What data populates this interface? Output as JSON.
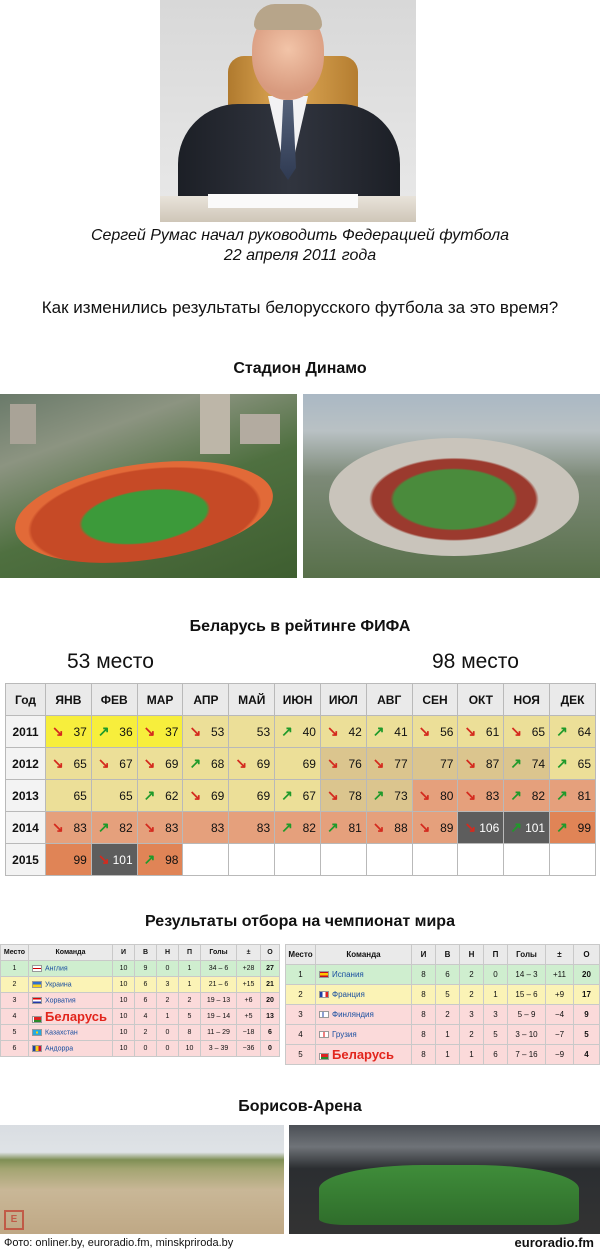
{
  "caption": {
    "line1": "Сергей Румас начал руководить Федерацией футбола",
    "line2": "22 апреля 2011 года"
  },
  "question": "Как изменились результаты белорусского футбола за это время?",
  "stadium_title": "Стадион Динамо",
  "fifa": {
    "title": "Беларусь в рейтинге ФИФА",
    "place_left": "53 место",
    "place_right": "98 место",
    "headers": [
      "Год",
      "ЯНВ",
      "ФЕВ",
      "МАР",
      "АПР",
      "МАЙ",
      "ИЮН",
      "ИЮЛ",
      "АВГ",
      "СЕН",
      "ОКТ",
      "НОЯ",
      "ДЕК"
    ],
    "rows": [
      {
        "year": "2011",
        "cells": [
          {
            "v": "37",
            "a": "down",
            "c": "yellow"
          },
          {
            "v": "36",
            "a": "up",
            "c": "yellow"
          },
          {
            "v": "37",
            "a": "down",
            "c": "yellow"
          },
          {
            "v": "53",
            "a": "down",
            "c": "lightyellow"
          },
          {
            "v": "53",
            "a": "",
            "c": "lightyellow"
          },
          {
            "v": "40",
            "a": "up",
            "c": "lightyellow"
          },
          {
            "v": "42",
            "a": "down",
            "c": "lightyellow"
          },
          {
            "v": "41",
            "a": "up",
            "c": "lightyellow"
          },
          {
            "v": "56",
            "a": "down",
            "c": "lightyellow"
          },
          {
            "v": "61",
            "a": "down",
            "c": "lightyellow"
          },
          {
            "v": "65",
            "a": "down",
            "c": "lightyellow"
          },
          {
            "v": "64",
            "a": "up",
            "c": "lightyellow"
          }
        ]
      },
      {
        "year": "2012",
        "cells": [
          {
            "v": "65",
            "a": "down",
            "c": "lightyellow"
          },
          {
            "v": "67",
            "a": "down",
            "c": "lightyellow"
          },
          {
            "v": "69",
            "a": "down",
            "c": "lightyellow"
          },
          {
            "v": "68",
            "a": "up",
            "c": "lightyellow"
          },
          {
            "v": "69",
            "a": "down",
            "c": "lightyellow"
          },
          {
            "v": "69",
            "a": "",
            "c": "lightyellow"
          },
          {
            "v": "76",
            "a": "down",
            "c": "beige"
          },
          {
            "v": "77",
            "a": "down",
            "c": "beige"
          },
          {
            "v": "77",
            "a": "",
            "c": "beige"
          },
          {
            "v": "87",
            "a": "down",
            "c": "beige"
          },
          {
            "v": "74",
            "a": "up",
            "c": "beige"
          },
          {
            "v": "65",
            "a": "up",
            "c": "lightyellow"
          }
        ]
      },
      {
        "year": "2013",
        "cells": [
          {
            "v": "65",
            "a": "",
            "c": "lightyellow"
          },
          {
            "v": "65",
            "a": "",
            "c": "lightyellow"
          },
          {
            "v": "62",
            "a": "up",
            "c": "lightyellow"
          },
          {
            "v": "69",
            "a": "down",
            "c": "lightyellow"
          },
          {
            "v": "69",
            "a": "",
            "c": "lightyellow"
          },
          {
            "v": "67",
            "a": "up",
            "c": "lightyellow"
          },
          {
            "v": "78",
            "a": "down",
            "c": "beige"
          },
          {
            "v": "73",
            "a": "up",
            "c": "beige"
          },
          {
            "v": "80",
            "a": "down",
            "c": "salmon"
          },
          {
            "v": "83",
            "a": "down",
            "c": "salmon"
          },
          {
            "v": "82",
            "a": "up",
            "c": "salmon"
          },
          {
            "v": "81",
            "a": "up",
            "c": "salmon"
          }
        ]
      },
      {
        "year": "2014",
        "cells": [
          {
            "v": "83",
            "a": "down",
            "c": "salmon"
          },
          {
            "v": "82",
            "a": "up",
            "c": "salmon"
          },
          {
            "v": "83",
            "a": "down",
            "c": "salmon"
          },
          {
            "v": "83",
            "a": "",
            "c": "salmon"
          },
          {
            "v": "83",
            "a": "",
            "c": "salmon"
          },
          {
            "v": "82",
            "a": "up",
            "c": "salmon"
          },
          {
            "v": "81",
            "a": "up",
            "c": "salmon"
          },
          {
            "v": "88",
            "a": "down",
            "c": "salmon"
          },
          {
            "v": "89",
            "a": "down",
            "c": "salmon"
          },
          {
            "v": "106",
            "a": "down",
            "c": "gray"
          },
          {
            "v": "101",
            "a": "up",
            "c": "gray"
          },
          {
            "v": "99",
            "a": "up",
            "c": "orange"
          }
        ]
      },
      {
        "year": "2015",
        "cells": [
          {
            "v": "99",
            "a": "",
            "c": "orange"
          },
          {
            "v": "101",
            "a": "down",
            "c": "gray"
          },
          {
            "v": "98",
            "a": "up",
            "c": "orange"
          },
          {
            "v": "",
            "a": "",
            "c": "empty"
          },
          {
            "v": "",
            "a": "",
            "c": "empty"
          },
          {
            "v": "",
            "a": "",
            "c": "empty"
          },
          {
            "v": "",
            "a": "",
            "c": "empty"
          },
          {
            "v": "",
            "a": "",
            "c": "empty"
          },
          {
            "v": "",
            "a": "",
            "c": "empty"
          },
          {
            "v": "",
            "a": "",
            "c": "empty"
          },
          {
            "v": "",
            "a": "",
            "c": "empty"
          },
          {
            "v": "",
            "a": "",
            "c": "empty"
          }
        ]
      }
    ]
  },
  "qualification": {
    "title": "Результаты отбора на чемпионат мира",
    "headers": [
      "Место",
      "Команда",
      "И",
      "В",
      "Н",
      "П",
      "Голы",
      "±",
      "О"
    ],
    "group1": [
      {
        "pos": "1",
        "team": "Англия",
        "flag": "england",
        "row": "green",
        "p": "10",
        "w": "9",
        "d": "0",
        "l": "1",
        "goals": "34 – 6",
        "diff": "+28",
        "pts": "27"
      },
      {
        "pos": "2",
        "team": "Украина",
        "flag": "ukraine",
        "row": "yellow",
        "p": "10",
        "w": "6",
        "d": "3",
        "l": "1",
        "goals": "21 – 6",
        "diff": "+15",
        "pts": "21"
      },
      {
        "pos": "3",
        "team": "Хорватия",
        "flag": "croatia",
        "row": "pink",
        "p": "10",
        "w": "6",
        "d": "2",
        "l": "2",
        "goals": "19 – 13",
        "diff": "+6",
        "pts": "20"
      },
      {
        "pos": "4",
        "team": "Беларусь",
        "flag": "belarus",
        "row": "pink",
        "p": "10",
        "w": "4",
        "d": "1",
        "l": "5",
        "goals": "19 – 14",
        "diff": "+5",
        "pts": "13"
      },
      {
        "pos": "5",
        "team": "Казахстан",
        "flag": "kazakhstan",
        "row": "pink",
        "p": "10",
        "w": "2",
        "d": "0",
        "l": "8",
        "goals": "11 – 29",
        "diff": "−18",
        "pts": "6"
      },
      {
        "pos": "6",
        "team": "Андорра",
        "flag": "andorra",
        "row": "pink",
        "p": "10",
        "w": "0",
        "d": "0",
        "l": "10",
        "goals": "3 – 39",
        "diff": "−36",
        "pts": "0"
      }
    ],
    "group2": [
      {
        "pos": "1",
        "team": "Испания",
        "flag": "spain",
        "row": "green",
        "p": "8",
        "w": "6",
        "d": "2",
        "l": "0",
        "goals": "14 – 3",
        "diff": "+11",
        "pts": "20"
      },
      {
        "pos": "2",
        "team": "Франция",
        "flag": "france",
        "row": "yellow",
        "p": "8",
        "w": "5",
        "d": "2",
        "l": "1",
        "goals": "15 – 6",
        "diff": "+9",
        "pts": "17"
      },
      {
        "pos": "3",
        "team": "Финляндия",
        "flag": "finland",
        "row": "pink",
        "p": "8",
        "w": "2",
        "d": "3",
        "l": "3",
        "goals": "5 – 9",
        "diff": "−4",
        "pts": "9"
      },
      {
        "pos": "4",
        "team": "Грузия",
        "flag": "georgia",
        "row": "pink",
        "p": "8",
        "w": "1",
        "d": "2",
        "l": "5",
        "goals": "3 – 10",
        "diff": "−7",
        "pts": "5"
      },
      {
        "pos": "5",
        "team": "Беларусь",
        "flag": "belarus",
        "row": "pink",
        "p": "8",
        "w": "1",
        "d": "1",
        "l": "6",
        "goals": "7 – 16",
        "diff": "−9",
        "pts": "4"
      }
    ]
  },
  "arena_title": "Борисов-Арена",
  "credit": "Фото: onliner.by, euroradio.fm, minskpriroda.by",
  "brand": "euroradio.fm",
  "colors": {
    "yellow": "#f7ee3c",
    "lightyellow": "#ecdf98",
    "beige": "#dbc58e",
    "salmon": "#e5a07c",
    "orange": "#e08456",
    "gray": "#5d5d5d",
    "arrow_down": "#d42a1e",
    "arrow_up": "#1f9a2a",
    "belarus_text": "#e2251d"
  }
}
